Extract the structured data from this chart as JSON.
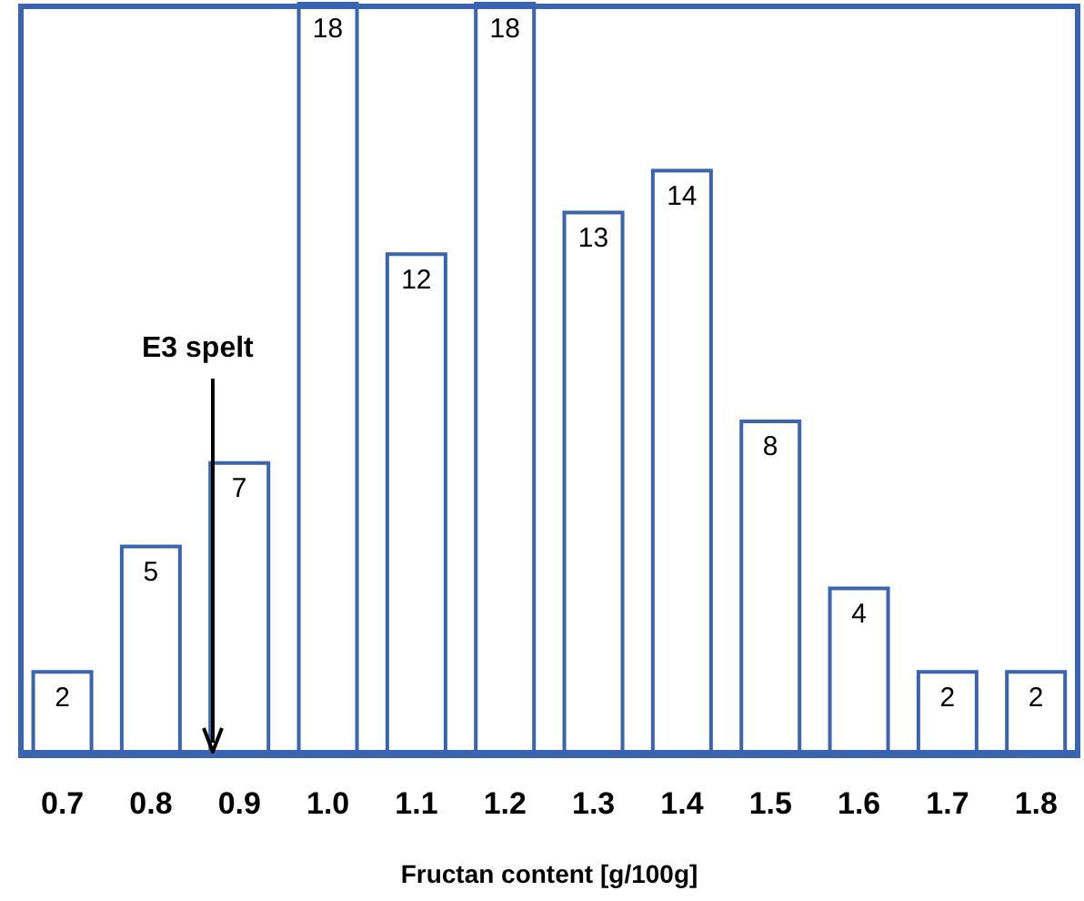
{
  "chart_data": {
    "type": "bar",
    "xlabel": "Fructan content [g/100g]",
    "categories": [
      "0.7",
      "0.8",
      "0.9",
      "1.0",
      "1.1",
      "1.2",
      "1.3",
      "1.4",
      "1.5",
      "1.6",
      "1.7",
      "1.8"
    ],
    "values": [
      2,
      5,
      7,
      18,
      12,
      18,
      13,
      14,
      8,
      4,
      2,
      2
    ],
    "color": "#3a64b0",
    "data_labels": true,
    "tick_labels": "x",
    "annotations": [
      "E3 spelt"
    ]
  }
}
